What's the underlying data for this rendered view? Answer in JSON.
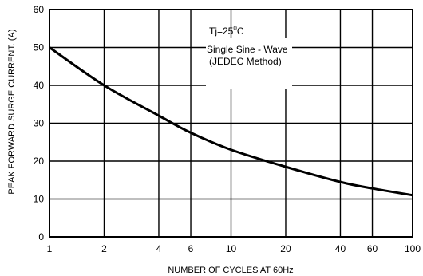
{
  "chart_data": {
    "type": "line",
    "title": "",
    "xlabel": "NUMBER OF CYCLES AT 60Hz",
    "ylabel": "PEAK FORWARD SURGE CURRENT. (A)",
    "x_scale": "log",
    "xlim": [
      1,
      100
    ],
    "ylim": [
      0,
      60
    ],
    "x_ticks": [
      1,
      2,
      4,
      6,
      10,
      20,
      40,
      60,
      100
    ],
    "x_tick_labels": [
      "1",
      "2",
      "4",
      "6",
      "10",
      "20",
      "40",
      "60",
      "100"
    ],
    "y_ticks": [
      0,
      10,
      20,
      30,
      40,
      50,
      60
    ],
    "y_tick_labels": [
      "0",
      "10",
      "20",
      "30",
      "40",
      "50",
      "60"
    ],
    "grid": true,
    "annotations": {
      "tj": "Tj=25",
      "tj_sup": "0",
      "tj_unit": "C",
      "line1": "Single Sine - Wave",
      "line2": "(JEDEC Method)"
    },
    "series": [
      {
        "x": [
          1,
          2,
          4,
          6,
          10,
          20,
          40,
          60,
          100
        ],
        "y": [
          50,
          40,
          32,
          27.5,
          23,
          18.5,
          14.5,
          12.8,
          11
        ],
        "color": "#000000"
      }
    ]
  }
}
